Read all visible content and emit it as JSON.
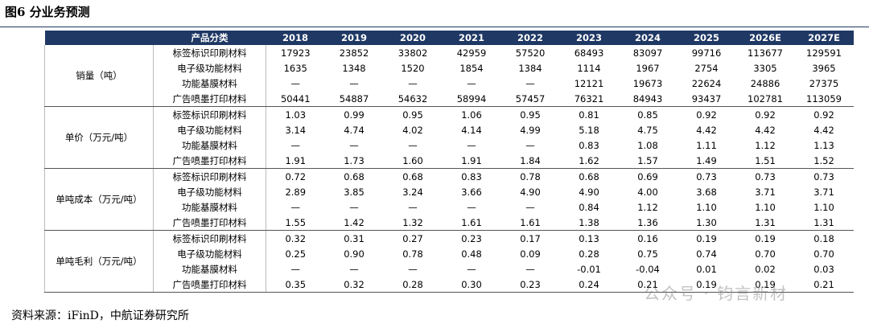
{
  "header": {
    "title": "图6  分业务预测"
  },
  "table": {
    "columns": [
      "产品分类",
      "2018",
      "2019",
      "2020",
      "2021",
      "2022",
      "2023",
      "2024",
      "2025",
      "2026E",
      "2027E"
    ],
    "groups": [
      {
        "label": "销量（吨）",
        "rows": [
          {
            "product": "标签标识印刷材料",
            "values": [
              "17923",
              "23852",
              "33802",
              "42959",
              "57520",
              "68493",
              "83097",
              "99716",
              "113677",
              "129591"
            ]
          },
          {
            "product": "电子级功能材料",
            "values": [
              "1635",
              "1348",
              "1520",
              "1854",
              "1384",
              "1114",
              "1967",
              "2754",
              "3305",
              "3965"
            ]
          },
          {
            "product": "功能基膜材料",
            "values": [
              "—",
              "—",
              "—",
              "—",
              "—",
              "12121",
              "19673",
              "22624",
              "24886",
              "27375"
            ]
          },
          {
            "product": "广告喷墨打印材料",
            "values": [
              "50441",
              "54887",
              "54632",
              "58994",
              "57457",
              "76321",
              "84943",
              "93437",
              "102781",
              "113059"
            ]
          }
        ]
      },
      {
        "label": "单价（万元/吨）",
        "rows": [
          {
            "product": "标签标识印刷材料",
            "values": [
              "1.03",
              "0.99",
              "0.95",
              "1.06",
              "0.95",
              "0.81",
              "0.85",
              "0.92",
              "0.92",
              "0.92"
            ]
          },
          {
            "product": "电子级功能材料",
            "values": [
              "3.14",
              "4.74",
              "4.02",
              "4.14",
              "4.99",
              "5.18",
              "4.75",
              "4.42",
              "4.42",
              "4.42"
            ]
          },
          {
            "product": "功能基膜材料",
            "values": [
              "—",
              "—",
              "—",
              "—",
              "—",
              "0.83",
              "1.08",
              "1.11",
              "1.12",
              "1.13"
            ]
          },
          {
            "product": "广告喷墨打印材料",
            "values": [
              "1.91",
              "1.73",
              "1.60",
              "1.91",
              "1.84",
              "1.62",
              "1.57",
              "1.49",
              "1.51",
              "1.52"
            ]
          }
        ]
      },
      {
        "label": "单吨成本（万元/吨）",
        "rows": [
          {
            "product": "标签标识印刷材料",
            "values": [
              "0.72",
              "0.68",
              "0.68",
              "0.83",
              "0.78",
              "0.68",
              "0.69",
              "0.73",
              "0.73",
              "0.73"
            ]
          },
          {
            "product": "电子级功能材料",
            "values": [
              "2.89",
              "3.85",
              "3.24",
              "3.66",
              "4.90",
              "4.90",
              "4.00",
              "3.68",
              "3.71",
              "3.71"
            ]
          },
          {
            "product": "功能基膜材料",
            "values": [
              "—",
              "—",
              "—",
              "—",
              "—",
              "0.84",
              "1.12",
              "1.10",
              "1.10",
              "1.10"
            ]
          },
          {
            "product": "广告喷墨打印材料",
            "values": [
              "1.55",
              "1.42",
              "1.32",
              "1.61",
              "1.61",
              "1.38",
              "1.36",
              "1.30",
              "1.31",
              "1.31"
            ]
          }
        ]
      },
      {
        "label": "单吨毛利（万元/吨）",
        "rows": [
          {
            "product": "标签标识印刷材料",
            "values": [
              "0.32",
              "0.31",
              "0.27",
              "0.23",
              "0.17",
              "0.13",
              "0.16",
              "0.19",
              "0.19",
              "0.18"
            ]
          },
          {
            "product": "电子级功能材料",
            "values": [
              "0.25",
              "0.90",
              "0.78",
              "0.48",
              "0.09",
              "0.28",
              "0.75",
              "0.74",
              "0.70",
              "0.70"
            ]
          },
          {
            "product": "功能基膜材料",
            "values": [
              "—",
              "—",
              "—",
              "—",
              "—",
              "-0.01",
              "-0.04",
              "0.01",
              "0.02",
              "0.03"
            ]
          },
          {
            "product": "广告喷墨打印材料",
            "values": [
              "0.35",
              "0.32",
              "0.28",
              "0.30",
              "0.23",
              "0.24",
              "0.21",
              "0.19",
              "0.19",
              "0.21"
            ]
          }
        ]
      }
    ]
  },
  "source": "资料来源：iFinD，中航证券研究所",
  "watermark": "公众号 · 钧言新材"
}
